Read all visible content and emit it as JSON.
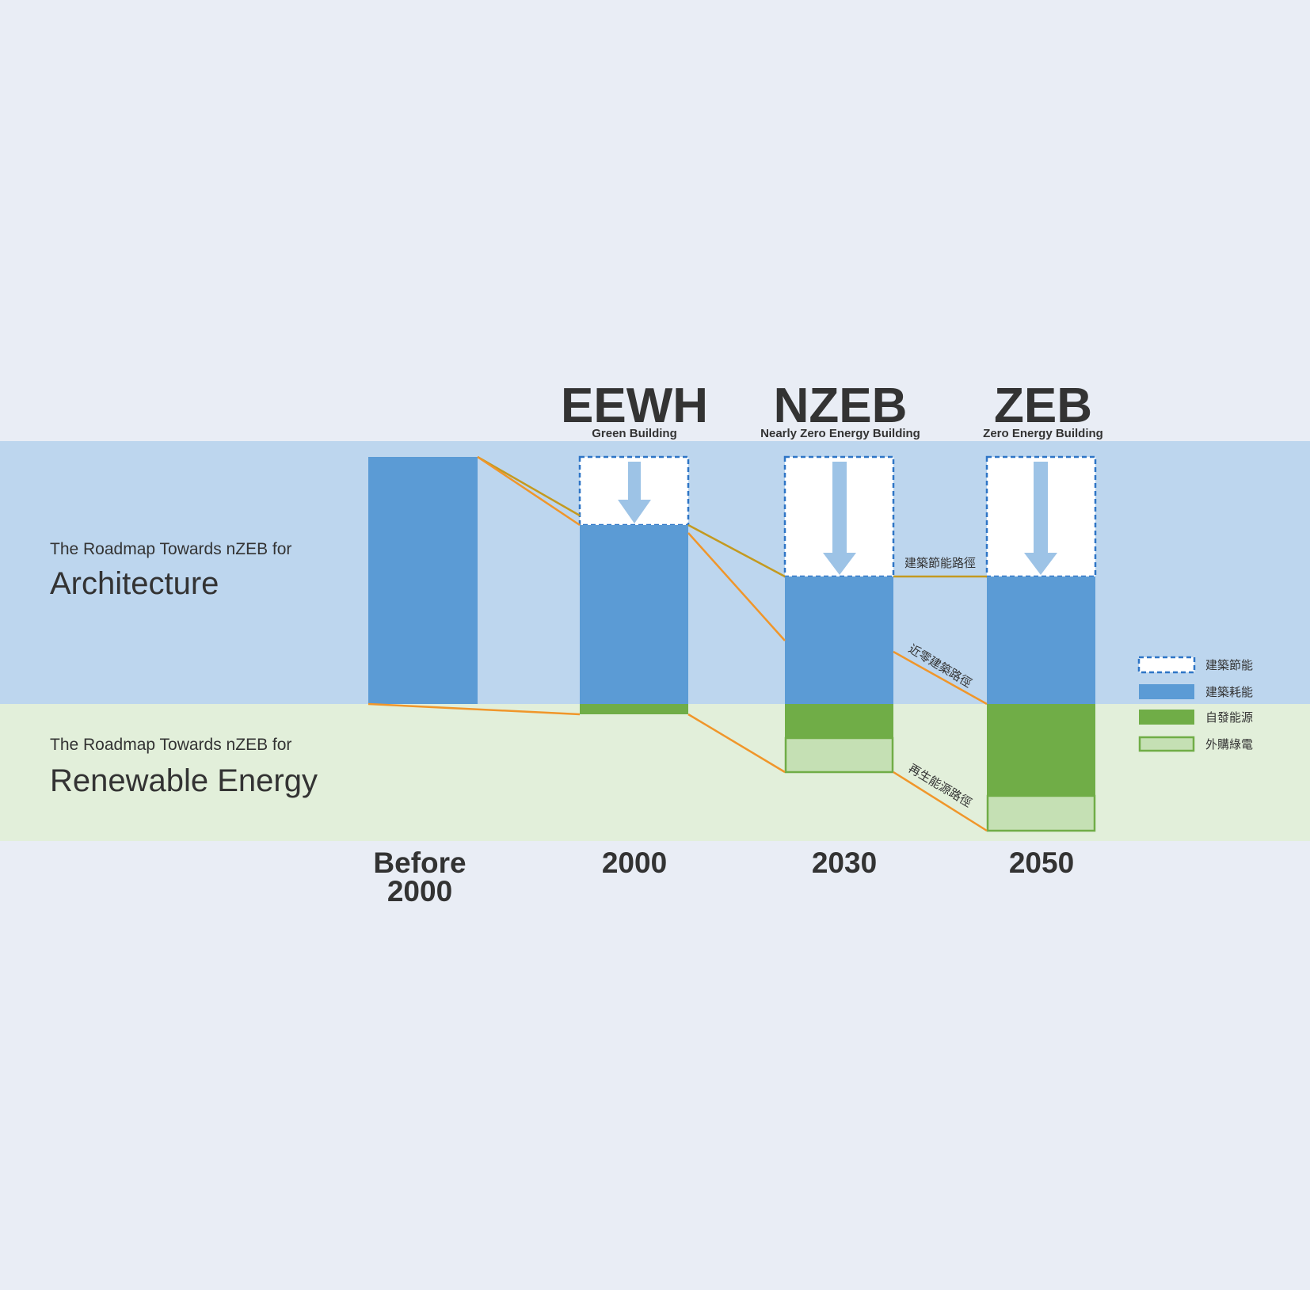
{
  "stages": [
    {
      "title": "EEWH",
      "subtitle": "Green Building"
    },
    {
      "title": "NZEB",
      "subtitle": "Nearly Zero Energy Building"
    },
    {
      "title": "ZEB",
      "subtitle": "Zero Energy Building"
    }
  ],
  "sections": [
    {
      "prefix": "The Roadmap Towards nZEB for",
      "label": "Architecture"
    },
    {
      "prefix": "The Roadmap Towards nZEB for",
      "label": "Renewable Energy"
    }
  ],
  "years": [
    [
      "Before",
      "2000"
    ],
    [
      "2000"
    ],
    [
      "2030"
    ],
    [
      "2050"
    ]
  ],
  "paths": [
    "建築節能路徑",
    "近零建築路徑",
    "再生能源路徑"
  ],
  "legend": [
    "建築節能",
    "建築耗能",
    "自發能源",
    "外購綠電"
  ]
}
